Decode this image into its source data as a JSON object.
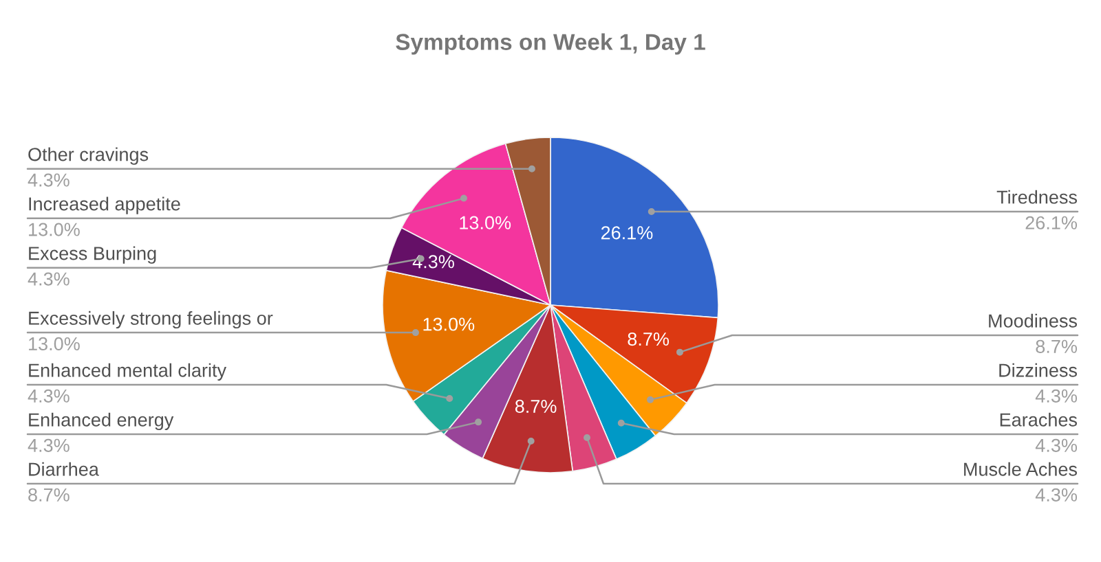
{
  "chart_data": {
    "type": "pie",
    "title": "Symptoms on Week 1, Day 1",
    "categories": [
      "Tiredness",
      "Moodiness",
      "Dizziness",
      "Earaches",
      "Muscle Aches",
      "Diarrhea",
      "Enhanced energy",
      "Enhanced mental clarity",
      "Excessively strong feelings or",
      "Excess Burping",
      "Increased appetite",
      "Other cravings"
    ],
    "values": [
      26.1,
      8.7,
      4.3,
      4.3,
      4.3,
      8.7,
      4.3,
      4.3,
      13.0,
      4.3,
      13.0,
      4.3
    ],
    "colors": [
      "#3366cc",
      "#dc3912",
      "#ff9900",
      "#0099c6",
      "#dd4477",
      "#b82e2e",
      "#994499",
      "#22aa99",
      "#e67300",
      "#651067",
      "#f4359e",
      "#9c5935"
    ],
    "value_labels": [
      "26.1%",
      "8.7%",
      "4.3%",
      "4.3%",
      "4.3%",
      "8.7%",
      "4.3%",
      "4.3%",
      "13.0%",
      "4.3%",
      "13.0%",
      "4.3%"
    ],
    "annotations": [
      {
        "text": "26.1%",
        "x": "Tiredness"
      },
      {
        "text": "8.7%",
        "x": "Moodiness"
      },
      {
        "text": "8.7%",
        "x": "Diarrhea"
      },
      {
        "text": "13.0%",
        "x": "Excessively strong feelings or"
      },
      {
        "text": "4.3%",
        "x": "Excess Burping"
      },
      {
        "text": "13.0%",
        "x": "Increased appetite"
      }
    ]
  }
}
